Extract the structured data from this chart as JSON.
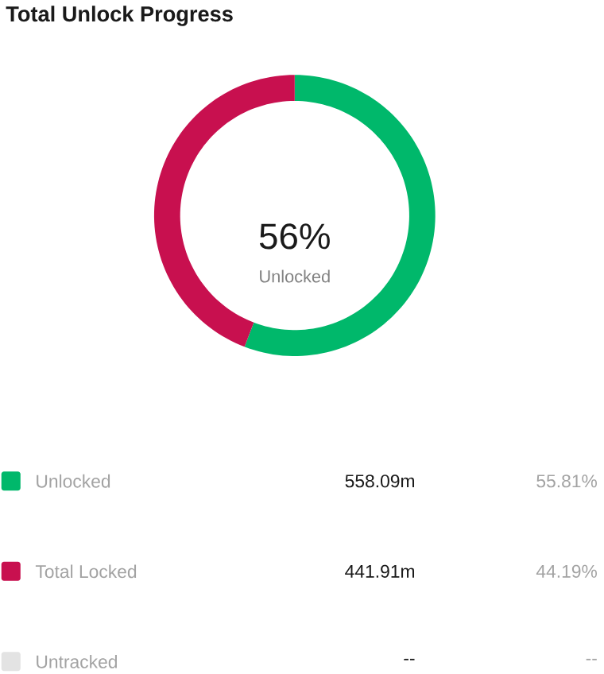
{
  "chart_data": {
    "type": "donut",
    "title": "Total Unlock Progress",
    "categories": [
      "Unlocked",
      "Total Locked",
      "Untracked"
    ],
    "values": [
      55.81,
      44.19,
      null
    ],
    "colors": [
      "#00b86b",
      "#c8104f",
      "#e3e3e3"
    ],
    "value_labels": [
      "55.81%",
      "44.19%",
      "--"
    ],
    "annotations": [
      "56%",
      "Unlocked",
      "558.09m",
      "441.91m",
      "--"
    ],
    "legend": "bottom"
  }
}
